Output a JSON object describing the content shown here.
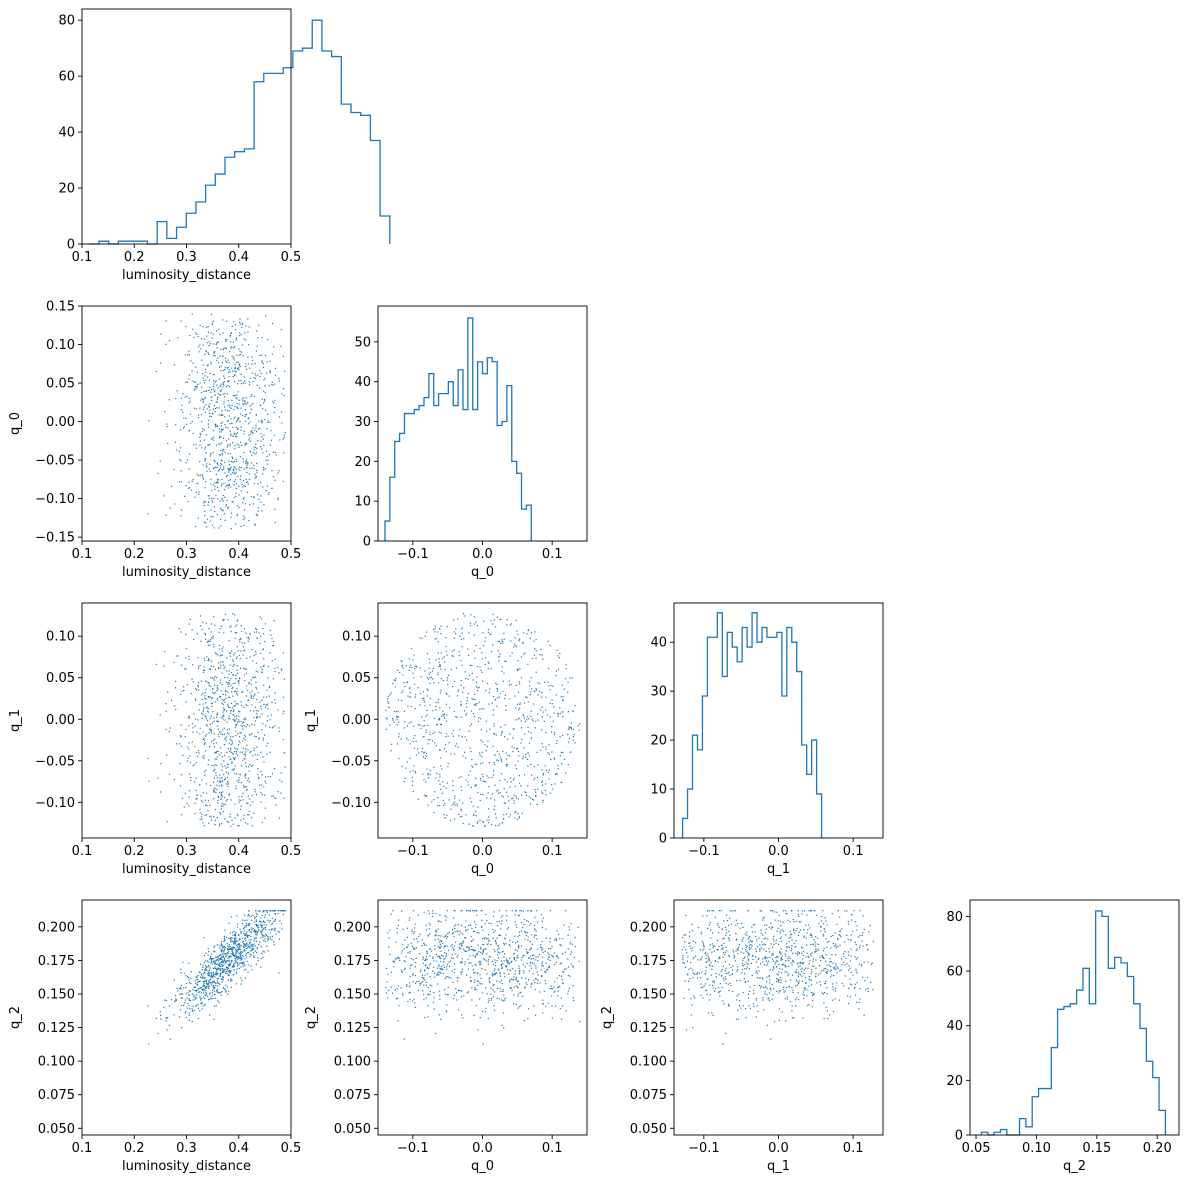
{
  "figure": {
    "type": "corner-plot",
    "variables": [
      "luminosity_distance",
      "q_0",
      "q_1",
      "q_2"
    ],
    "line_color": "#1f77b4",
    "point_color": "#1f77b4"
  },
  "chart_data": [
    {
      "type": "bar",
      "style": "step-histogram",
      "xlabel": "luminosity_distance",
      "xlim": [
        0.1,
        0.5
      ],
      "ylim": [
        0,
        84
      ],
      "xticks": [
        "0.1",
        "0.2",
        "0.3",
        "0.4",
        "0.5"
      ],
      "yticks": [
        "0",
        "20",
        "40",
        "60",
        "80"
      ],
      "bin_edges_start": 0.114,
      "bin_width": 0.01855,
      "values": [
        0,
        1,
        0,
        1,
        1,
        1,
        0,
        8,
        2,
        6,
        11,
        15,
        21,
        25,
        31,
        33,
        34,
        58,
        61,
        61,
        63,
        69,
        70,
        80,
        69,
        67,
        50,
        47,
        46,
        37,
        10
      ]
    },
    {
      "type": "scatter",
      "xlabel": "luminosity_distance",
      "ylabel": "q_0",
      "xlim": [
        0.1,
        0.5
      ],
      "ylim": [
        -0.155,
        0.15
      ],
      "xticks": [
        "0.1",
        "0.2",
        "0.3",
        "0.4",
        "0.5"
      ],
      "yticks": [
        "−0.15",
        "−0.10",
        "−0.05",
        "0.00",
        "0.05",
        "0.10",
        "0.15"
      ],
      "n_points": 1000
    },
    {
      "type": "bar",
      "style": "step-histogram",
      "xlabel": "q_0",
      "xlim": [
        -0.15,
        0.15
      ],
      "ylim": [
        0,
        59
      ],
      "xticks": [
        "−0.1",
        "0.0",
        "0.1"
      ],
      "yticks": [
        "0",
        "10",
        "20",
        "30",
        "40",
        "50"
      ],
      "bin_edges_start": -0.14,
      "bin_width": 0.007,
      "values": [
        5,
        16,
        25,
        27,
        32,
        32,
        33,
        34,
        36,
        42,
        34,
        37,
        37,
        40,
        34,
        43,
        33,
        56,
        33,
        45,
        42,
        46,
        45,
        29,
        30,
        39,
        20,
        17,
        8,
        9
      ]
    },
    {
      "type": "scatter",
      "xlabel": "luminosity_distance",
      "ylabel": "q_1",
      "xlim": [
        0.1,
        0.5
      ],
      "ylim": [
        -0.143,
        0.14
      ],
      "xticks": [
        "0.1",
        "0.2",
        "0.3",
        "0.4",
        "0.5"
      ],
      "yticks": [
        "−0.10",
        "−0.05",
        "0.00",
        "0.05",
        "0.10"
      ],
      "n_points": 1000
    },
    {
      "type": "scatter",
      "xlabel": "q_0",
      "ylabel": "q_1",
      "xlim": [
        -0.15,
        0.15
      ],
      "ylim": [
        -0.143,
        0.14
      ],
      "xticks": [
        "−0.1",
        "0.0",
        "0.1"
      ],
      "yticks": [
        "−0.10",
        "−0.05",
        "0.00",
        "0.05",
        "0.10"
      ],
      "n_points": 1000
    },
    {
      "type": "bar",
      "style": "step-histogram",
      "xlabel": "q_1",
      "xlim": [
        -0.14,
        0.14
      ],
      "ylim": [
        0,
        48
      ],
      "xticks": [
        "−0.1",
        "0.0",
        "0.1"
      ],
      "yticks": [
        "0",
        "10",
        "20",
        "30",
        "40"
      ],
      "bin_edges_start": -0.1285,
      "bin_width": 0.00665,
      "values": [
        4,
        10,
        21,
        18,
        29,
        41,
        41,
        46,
        33,
        42,
        39,
        36,
        43,
        39,
        46,
        40,
        43,
        41,
        41,
        42,
        29,
        43,
        40,
        34,
        19,
        13,
        20,
        9
      ]
    },
    {
      "type": "scatter",
      "xlabel": "luminosity_distance",
      "ylabel": "q_2",
      "xlim": [
        0.1,
        0.5
      ],
      "ylim": [
        0.045,
        0.22
      ],
      "xticks": [
        "0.1",
        "0.2",
        "0.3",
        "0.4",
        "0.5"
      ],
      "yticks": [
        "0.050",
        "0.075",
        "0.100",
        "0.125",
        "0.150",
        "0.175",
        "0.200"
      ],
      "n_points": 1000
    },
    {
      "type": "scatter",
      "xlabel": "q_0",
      "ylabel": "q_2",
      "xlim": [
        -0.15,
        0.15
      ],
      "ylim": [
        0.045,
        0.22
      ],
      "xticks": [
        "−0.1",
        "0.0",
        "0.1"
      ],
      "yticks": [
        "0.050",
        "0.075",
        "0.100",
        "0.125",
        "0.150",
        "0.175",
        "0.200"
      ],
      "n_points": 1000
    },
    {
      "type": "scatter",
      "xlabel": "q_1",
      "ylabel": "q_2",
      "xlim": [
        -0.14,
        0.14
      ],
      "ylim": [
        0.045,
        0.22
      ],
      "xticks": [
        "−0.1",
        "0.0",
        "0.1"
      ],
      "yticks": [
        "0.050",
        "0.075",
        "0.100",
        "0.125",
        "0.150",
        "0.175",
        "0.200"
      ],
      "n_points": 1000
    },
    {
      "type": "bar",
      "style": "step-histogram",
      "xlabel": "q_2",
      "xlim": [
        0.045,
        0.218
      ],
      "ylim": [
        0,
        86
      ],
      "xticks": [
        "0.05",
        "0.10",
        "0.15",
        "0.20"
      ],
      "yticks": [
        "0",
        "20",
        "40",
        "60",
        "80"
      ],
      "bin_edges_start": 0.0545,
      "bin_width": 0.00525,
      "values": [
        1,
        0,
        1,
        2,
        0,
        0,
        6,
        3,
        14,
        17,
        17,
        32,
        46,
        47,
        48,
        53,
        61,
        48,
        82,
        80,
        61,
        65,
        63,
        58,
        48,
        39,
        27,
        21,
        9
      ]
    }
  ]
}
